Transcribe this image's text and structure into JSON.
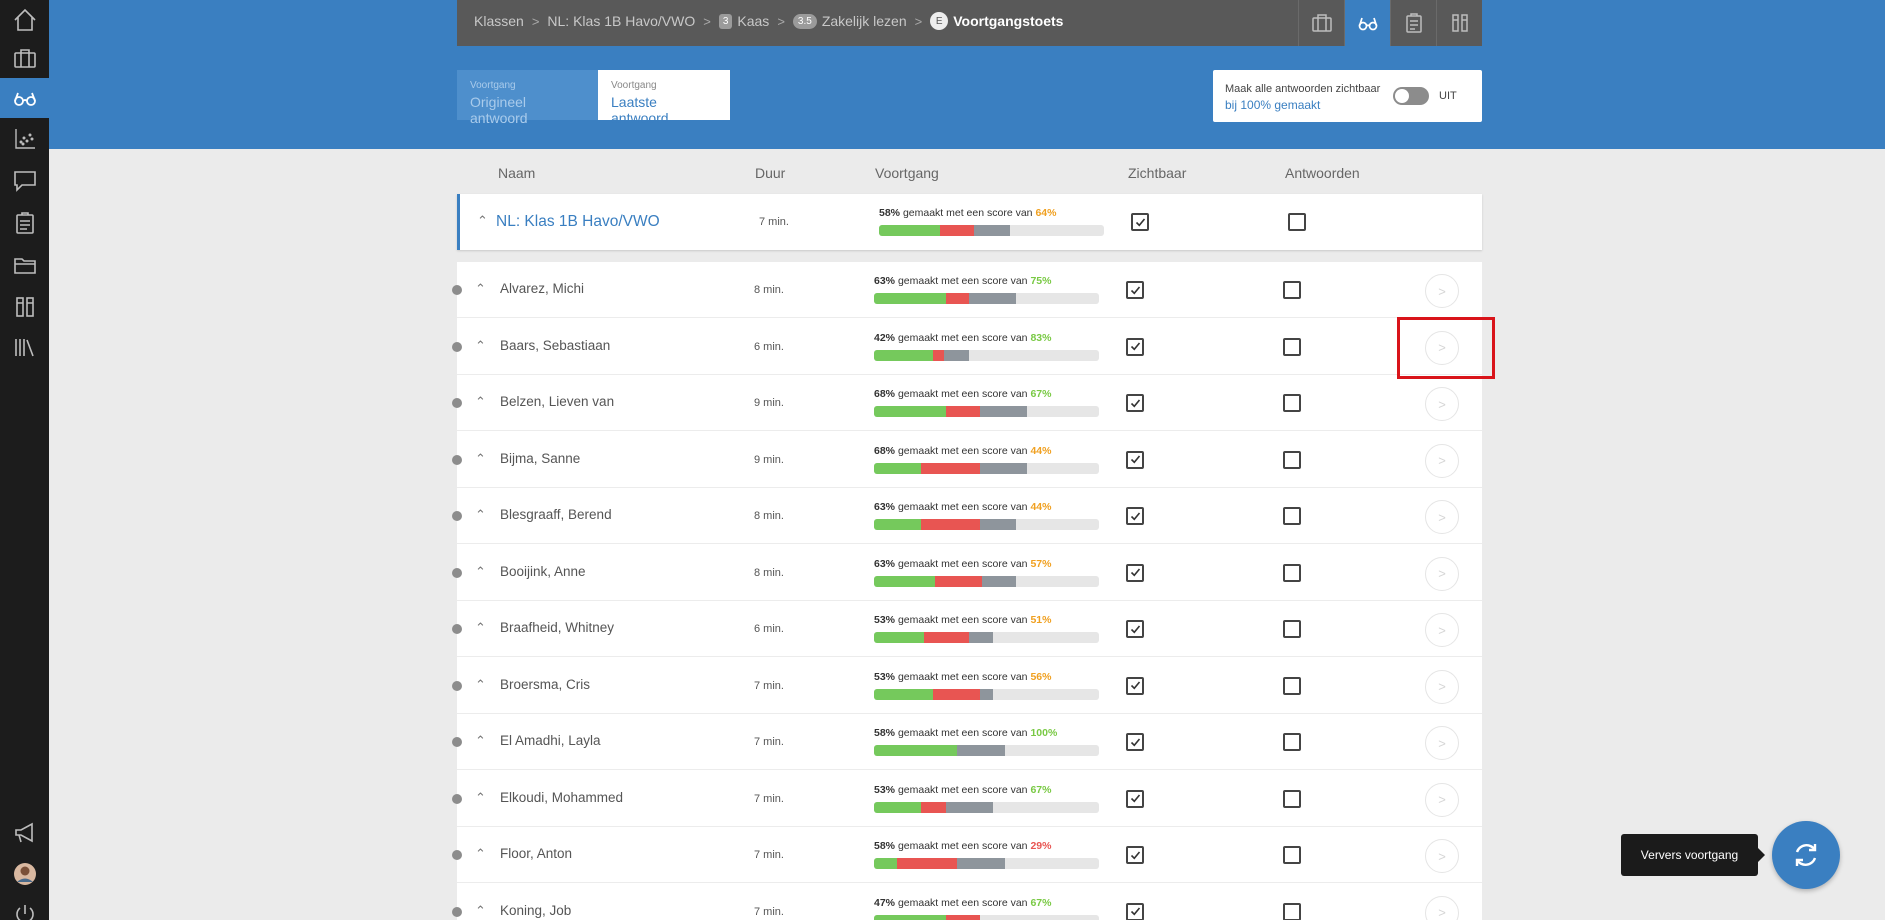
{
  "sidebar": {
    "items": [
      {
        "icon": "home-icon"
      },
      {
        "icon": "briefcase-icon"
      },
      {
        "icon": "glasses-icon",
        "active": true
      },
      {
        "icon": "scatter-chart-icon"
      },
      {
        "icon": "chat-icon"
      },
      {
        "icon": "clipboard-icon"
      },
      {
        "icon": "folder-icon"
      },
      {
        "icon": "books-tool-icon"
      },
      {
        "icon": "library-icon"
      }
    ],
    "bottom": [
      {
        "icon": "megaphone-icon"
      },
      {
        "icon": "avatar-icon"
      },
      {
        "icon": "power-icon"
      }
    ]
  },
  "breadcrumb": {
    "items": [
      {
        "label": "Klassen"
      },
      {
        "label": "NL: Klas 1B Havo/VWO"
      },
      {
        "badge": "3",
        "label": "Kaas"
      },
      {
        "badge": "3.5",
        "label": "Zakelijk lezen"
      },
      {
        "badge": "E",
        "label": "Voortgangstoets"
      }
    ]
  },
  "toolbar": {
    "icons": [
      "briefcase-icon",
      "glasses-icon",
      "clipboard-icon",
      "tools-icon"
    ],
    "active_index": 1
  },
  "answer_toggle": {
    "original": {
      "small": "Voortgang",
      "label": "Origineel antwoord"
    },
    "latest": {
      "small": "Voortgang",
      "label": "Laatste antwoord"
    }
  },
  "visibility": {
    "line1": "Maak alle antwoorden zichtbaar",
    "line2": "bij 100% gemaakt",
    "state": "UIT"
  },
  "table": {
    "headers": {
      "name": "Naam",
      "duration": "Duur",
      "progress": "Voortgang",
      "visible": "Zichtbaar",
      "answers": "Antwoorden"
    },
    "progress_middle": "gemaakt met een score van",
    "group": {
      "name": "NL: Klas 1B Havo/VWO",
      "duration": "7 min.",
      "made": "58%",
      "score": "64%",
      "score_color": "#f0a020",
      "green": 0.27,
      "red": 0.15,
      "gray": 0.16,
      "visible": true,
      "answers": false
    },
    "students": [
      {
        "name": "Alvarez, Michi",
        "duration": "8 min.",
        "made": "63%",
        "score": "75%",
        "score_color": "#79c944",
        "green": 0.32,
        "red": 0.1,
        "gray": 0.21,
        "visible": true,
        "answers": false
      },
      {
        "name": "Baars, Sebastiaan",
        "duration": "6 min.",
        "made": "42%",
        "score": "83%",
        "score_color": "#79c944",
        "green": 0.26,
        "red": 0.05,
        "gray": 0.11,
        "visible": true,
        "answers": false
      },
      {
        "name": "Belzen, Lieven van",
        "duration": "9 min.",
        "made": "68%",
        "score": "67%",
        "score_color": "#79c944",
        "green": 0.32,
        "red": 0.15,
        "gray": 0.21,
        "visible": true,
        "answers": false
      },
      {
        "name": "Bijma, Sanne",
        "duration": "9 min.",
        "made": "68%",
        "score": "44%",
        "score_color": "#f0a020",
        "green": 0.21,
        "red": 0.26,
        "gray": 0.21,
        "visible": true,
        "answers": false
      },
      {
        "name": "Blesgraaff, Berend",
        "duration": "8 min.",
        "made": "63%",
        "score": "44%",
        "score_color": "#f0a020",
        "green": 0.21,
        "red": 0.26,
        "gray": 0.16,
        "visible": true,
        "answers": false
      },
      {
        "name": "Booijink, Anne",
        "duration": "8 min.",
        "made": "63%",
        "score": "57%",
        "score_color": "#f0a020",
        "green": 0.27,
        "red": 0.21,
        "gray": 0.15,
        "visible": true,
        "answers": false
      },
      {
        "name": "Braafheid, Whitney",
        "duration": "6 min.",
        "made": "53%",
        "score": "51%",
        "score_color": "#f0a020",
        "green": 0.22,
        "red": 0.2,
        "gray": 0.11,
        "visible": true,
        "answers": false
      },
      {
        "name": "Broersma, Cris",
        "duration": "7 min.",
        "made": "53%",
        "score": "56%",
        "score_color": "#f0a020",
        "green": 0.26,
        "red": 0.21,
        "gray": 0.06,
        "visible": true,
        "answers": false
      },
      {
        "name": "El Amadhi, Layla",
        "duration": "7 min.",
        "made": "58%",
        "score": "100%",
        "score_color": "#79c944",
        "green": 0.37,
        "red": 0.0,
        "gray": 0.21,
        "visible": true,
        "answers": false
      },
      {
        "name": "Elkoudi, Mohammed",
        "duration": "7 min.",
        "made": "53%",
        "score": "67%",
        "score_color": "#79c944",
        "green": 0.21,
        "red": 0.11,
        "gray": 0.21,
        "visible": true,
        "answers": false
      },
      {
        "name": "Floor, Anton",
        "duration": "7 min.",
        "made": "58%",
        "score": "29%",
        "score_color": "#e85552",
        "green": 0.1,
        "red": 0.27,
        "gray": 0.21,
        "visible": true,
        "answers": false
      },
      {
        "name": "Koning, Job",
        "duration": "7 min.",
        "made": "47%",
        "score": "67%",
        "score_color": "#79c944",
        "green": 0.32,
        "red": 0.15,
        "gray": 0.0,
        "visible": true,
        "answers": false
      }
    ]
  },
  "refresh": {
    "tooltip": "Ververs voortgang"
  }
}
